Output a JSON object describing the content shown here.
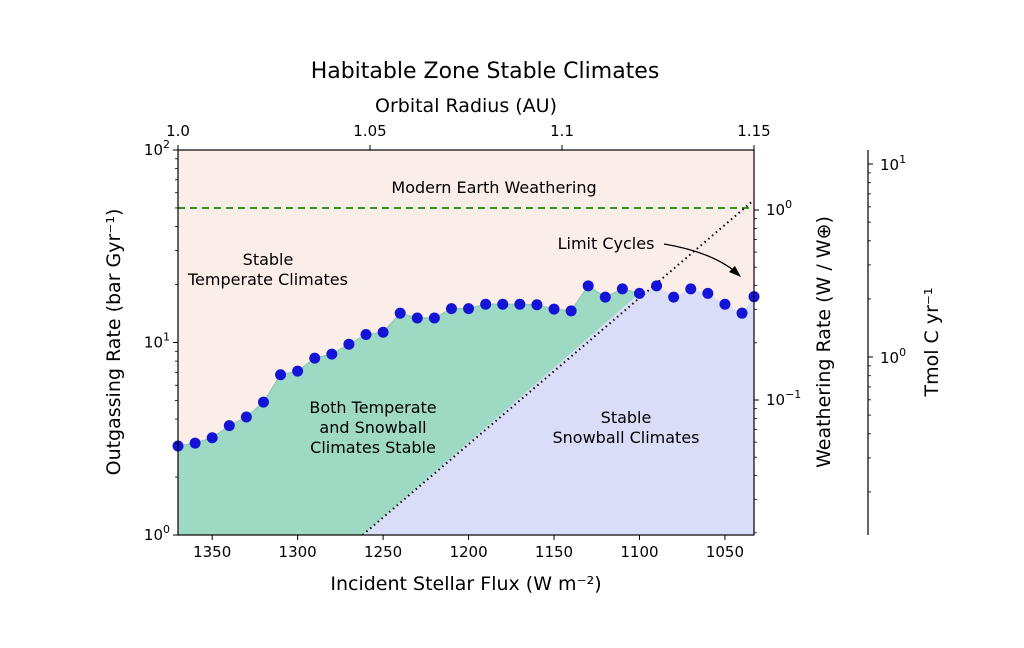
{
  "chart_data": {
    "type": "scatter",
    "title": "Habitable Zone Stable Climates",
    "xlabel": "Incident Stellar Flux (W m⁻²)",
    "ylabel": "Outgassing Rate (bar Gyr⁻¹)",
    "top_xlabel": "Orbital Radius (AU)",
    "right_ylabel": "Weathering Rate (W / W⊕)",
    "far_right_ylabel": "Tmol C yr⁻¹",
    "xlim": [
      1370,
      1033
    ],
    "ylim": [
      1,
      100
    ],
    "yscale": "log",
    "x_ticks": [
      "1350",
      "1300",
      "1250",
      "1200",
      "1150",
      "1100",
      "1050"
    ],
    "x_tick_values": [
      1350,
      1300,
      1250,
      1200,
      1150,
      1100,
      1050
    ],
    "y_ticks": [
      {
        "value": 1,
        "base": "10",
        "exp": "0"
      },
      {
        "value": 10,
        "base": "10",
        "exp": "1"
      },
      {
        "value": 100,
        "base": "10",
        "exp": "2"
      }
    ],
    "top_ticks": [
      "1.0",
      "1.05",
      "1.1",
      "1.15"
    ],
    "top_tick_values": [
      1.0,
      1.05,
      1.1,
      1.15
    ],
    "right_ticks": [
      {
        "value": 0.1,
        "base": "10",
        "exp": "−1"
      },
      {
        "value": 1,
        "base": "10",
        "exp": "0"
      }
    ],
    "far_right_ticks": [
      {
        "value": 1,
        "base": "10",
        "exp": "0"
      },
      {
        "value": 10,
        "base": "10",
        "exp": "1"
      }
    ],
    "annotations": {
      "modern_earth": "Modern Earth Weathering",
      "stable_temperate": [
        "Stable",
        "Temperate Climates"
      ],
      "both_stable": [
        "Both Temperate",
        "and Snowball",
        "Climates Stable"
      ],
      "stable_snowball": [
        "Stable",
        "Snowball Climates"
      ],
      "limit_cycles": "Limit Cycles"
    },
    "modern_earth_outgassing": 50,
    "limit_cycle_line": {
      "x": [
        1262,
        1033
      ],
      "y": [
        1,
        55
      ]
    },
    "boundary_points": {
      "x": [
        1370,
        1360,
        1350,
        1340,
        1330,
        1320,
        1310,
        1300,
        1290,
        1280,
        1270,
        1260,
        1250,
        1240,
        1230,
        1220,
        1210,
        1200,
        1190,
        1180,
        1170,
        1160,
        1150,
        1140,
        1130,
        1120,
        1110,
        1100
      ],
      "y": [
        2.9,
        3.0,
        3.2,
        3.7,
        4.1,
        4.9,
        6.8,
        7.1,
        8.3,
        8.7,
        9.8,
        11.0,
        11.3,
        14.2,
        13.4,
        13.4,
        15.0,
        15.0,
        15.8,
        15.8,
        15.8,
        15.7,
        14.9,
        14.6,
        19.7,
        17.2,
        19.0,
        18.0
      ]
    },
    "limit_cycle_points": {
      "x": [
        1090,
        1080,
        1070,
        1060,
        1050,
        1040,
        1033
      ],
      "y": [
        19.7,
        17.2,
        19.0,
        18.0,
        15.8,
        14.2,
        17.3
      ]
    },
    "colors": {
      "temperate": "#fbeee9",
      "both": "#9ed9c4",
      "snowball": "#d9ddf7",
      "points": "#1414d6",
      "modern_line": "#2a9a1f",
      "limit_line": "#000000"
    }
  }
}
